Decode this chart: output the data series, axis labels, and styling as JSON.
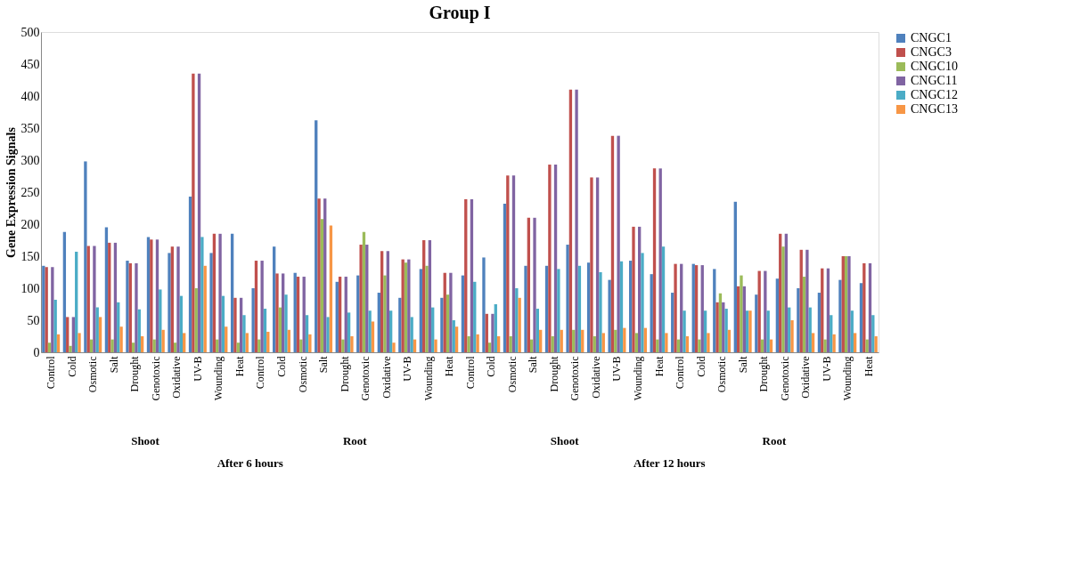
{
  "chart_data": {
    "type": "bar",
    "title": "Group I",
    "ylabel": "Gene Expression Signals",
    "categories": [
      "Control",
      "Cold",
      "Osmotic",
      "Salt",
      "Drought",
      "Genotoxic",
      "Oxidative",
      "UV-B",
      "Wounding",
      "Heat",
      "Control",
      "Cold",
      "Osmotic",
      "Salt",
      "Drought",
      "Genotoxic",
      "Oxidative",
      "UV-B",
      "Wounding",
      "Heat",
      "Control",
      "Cold",
      "Osmotic",
      "Salt",
      "Drought",
      "Genotoxic",
      "Oxidative",
      "UV-B",
      "Wounding",
      "Heat",
      "Control",
      "Cold",
      "Osmotic",
      "Salt",
      "Drought",
      "Genotoxic",
      "Oxidative",
      "UV-B",
      "Wounding",
      "Heat"
    ],
    "series": [
      {
        "name": "CNGC1",
        "color": "#4f81bd",
        "values": [
          135,
          188,
          298,
          195,
          143,
          180,
          155,
          243,
          155,
          185,
          100,
          165,
          124,
          362,
          110,
          120,
          93,
          85,
          130,
          85,
          120,
          148,
          232,
          135,
          135,
          168,
          140,
          113,
          143,
          122,
          93,
          138,
          130,
          235,
          90,
          115,
          100,
          93,
          113,
          108
        ]
      },
      {
        "name": "CNGC3",
        "color": "#c0504d",
        "values": [
          133,
          55,
          166,
          171,
          139,
          176,
          165,
          435,
          185,
          85,
          143,
          123,
          118,
          240,
          118,
          168,
          158,
          145,
          175,
          124,
          239,
          60,
          276,
          210,
          293,
          410,
          273,
          338,
          196,
          287,
          138,
          136,
          78,
          103,
          127,
          185,
          160,
          131,
          150,
          139
        ]
      },
      {
        "name": "CNGC10",
        "color": "#9bbb59",
        "values": [
          15,
          10,
          20,
          20,
          15,
          20,
          15,
          100,
          20,
          15,
          20,
          70,
          20,
          208,
          20,
          188,
          120,
          140,
          135,
          90,
          25,
          15,
          25,
          20,
          25,
          35,
          25,
          35,
          30,
          20,
          20,
          20,
          92,
          120,
          20,
          165,
          118,
          20,
          150,
          20
        ]
      },
      {
        "name": "CNGC11",
        "color": "#8064a2",
        "values": [
          133,
          55,
          166,
          171,
          139,
          176,
          165,
          435,
          185,
          85,
          143,
          123,
          118,
          240,
          118,
          168,
          158,
          145,
          175,
          124,
          239,
          60,
          276,
          210,
          293,
          410,
          273,
          338,
          196,
          287,
          138,
          136,
          78,
          103,
          127,
          185,
          160,
          131,
          150,
          139
        ]
      },
      {
        "name": "CNGC12",
        "color": "#4bacc6",
        "values": [
          82,
          157,
          70,
          78,
          67,
          98,
          88,
          180,
          88,
          58,
          68,
          90,
          58,
          55,
          62,
          65,
          65,
          55,
          70,
          50,
          110,
          75,
          100,
          68,
          130,
          135,
          125,
          142,
          155,
          165,
          65,
          65,
          68,
          65,
          65,
          70,
          70,
          58,
          65,
          58
        ]
      },
      {
        "name": "CNGC13",
        "color": "#f79646",
        "values": [
          28,
          30,
          55,
          40,
          25,
          35,
          30,
          135,
          40,
          30,
          32,
          35,
          28,
          198,
          25,
          48,
          15,
          20,
          20,
          40,
          28,
          25,
          85,
          35,
          35,
          35,
          30,
          38,
          38,
          30,
          25,
          30,
          35,
          65,
          20,
          50,
          30,
          28,
          30,
          25
        ]
      }
    ],
    "ylim": [
      0,
      500
    ],
    "yticks": [
      0,
      50,
      100,
      150,
      200,
      250,
      300,
      350,
      400,
      450,
      500
    ],
    "grid": false,
    "legend": "right",
    "annotations": [
      "Shoot",
      "Root",
      "Shoot",
      "Root",
      "After 6 hours",
      "After 12 hours"
    ]
  }
}
